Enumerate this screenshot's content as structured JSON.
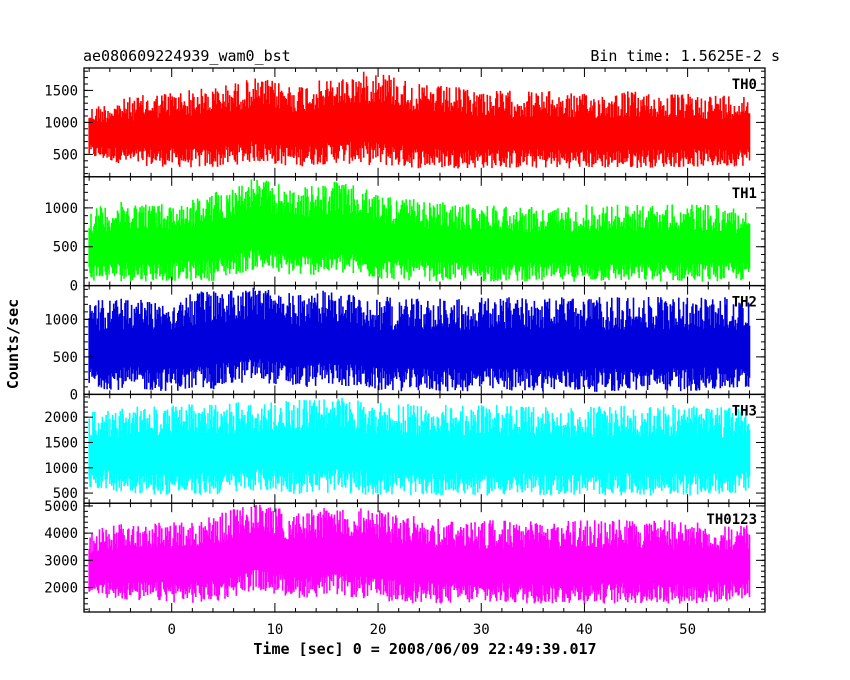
{
  "header": {
    "title": "ae080609224939_wam0_bst",
    "bin_time": "Bin time: 1.5625E-2 s"
  },
  "chart_data": {
    "type": "line",
    "x_label": "Time [sec] 0 = 2008/06/09 22:49:39.017",
    "y_label": "Counts/sec",
    "x_range": [
      -8.5,
      57.5
    ],
    "x_ticks": [
      0,
      10,
      20,
      30,
      40,
      50
    ],
    "x_tick_labels": [
      "0",
      "10",
      "20",
      "30",
      "40",
      "50"
    ],
    "data_x_range": [
      -8.0,
      56.0
    ],
    "panels": [
      {
        "name": "TH0",
        "color": "#ff0000",
        "y_range": [
          150,
          1850
        ],
        "y_ticks": [
          500,
          1000,
          1500
        ],
        "y_tick_labels": [
          "500",
          "1000",
          "1500"
        ],
        "upper_envelope": [
          [
            -8,
            1250
          ],
          [
            -4,
            1400
          ],
          [
            0,
            1500
          ],
          [
            4,
            1550
          ],
          [
            8,
            1700
          ],
          [
            12,
            1600
          ],
          [
            16,
            1700
          ],
          [
            20,
            1850
          ],
          [
            24,
            1600
          ],
          [
            28,
            1550
          ],
          [
            32,
            1500
          ],
          [
            36,
            1500
          ],
          [
            40,
            1450
          ],
          [
            44,
            1500
          ],
          [
            48,
            1450
          ],
          [
            52,
            1450
          ],
          [
            56,
            1450
          ]
        ],
        "lower_envelope": [
          [
            -8,
            450
          ],
          [
            -4,
            330
          ],
          [
            0,
            300
          ],
          [
            4,
            280
          ],
          [
            8,
            380
          ],
          [
            12,
            300
          ],
          [
            16,
            360
          ],
          [
            20,
            320
          ],
          [
            24,
            280
          ],
          [
            28,
            280
          ],
          [
            32,
            280
          ],
          [
            36,
            280
          ],
          [
            40,
            280
          ],
          [
            44,
            280
          ],
          [
            48,
            300
          ],
          [
            52,
            300
          ],
          [
            56,
            320
          ]
        ]
      },
      {
        "name": "TH1",
        "color": "#00ff00",
        "y_range": [
          0,
          1400
        ],
        "y_ticks": [
          0,
          500,
          1000
        ],
        "y_tick_labels": [
          "0",
          "500",
          "1000"
        ],
        "upper_envelope": [
          [
            -8,
            1000
          ],
          [
            -4,
            1100
          ],
          [
            0,
            1050
          ],
          [
            4,
            1200
          ],
          [
            8,
            1400
          ],
          [
            12,
            1250
          ],
          [
            16,
            1350
          ],
          [
            20,
            1200
          ],
          [
            24,
            1100
          ],
          [
            28,
            1050
          ],
          [
            32,
            1050
          ],
          [
            36,
            1000
          ],
          [
            40,
            1050
          ],
          [
            44,
            1050
          ],
          [
            48,
            1050
          ],
          [
            52,
            1050
          ],
          [
            56,
            1000
          ]
        ],
        "lower_envelope": [
          [
            -8,
            60
          ],
          [
            -4,
            50
          ],
          [
            0,
            60
          ],
          [
            4,
            60
          ],
          [
            8,
            200
          ],
          [
            12,
            120
          ],
          [
            16,
            150
          ],
          [
            20,
            80
          ],
          [
            24,
            60
          ],
          [
            28,
            50
          ],
          [
            32,
            50
          ],
          [
            36,
            50
          ],
          [
            40,
            50
          ],
          [
            44,
            50
          ],
          [
            48,
            50
          ],
          [
            52,
            50
          ],
          [
            56,
            60
          ]
        ]
      },
      {
        "name": "TH2",
        "color": "#0000dd",
        "y_range": [
          0,
          1450
        ],
        "y_ticks": [
          0,
          500,
          1000
        ],
        "y_tick_labels": [
          "0",
          "500",
          "1000"
        ],
        "upper_envelope": [
          [
            -8,
            1250
          ],
          [
            -4,
            1300
          ],
          [
            0,
            1300
          ],
          [
            4,
            1400
          ],
          [
            8,
            1450
          ],
          [
            12,
            1350
          ],
          [
            16,
            1400
          ],
          [
            20,
            1300
          ],
          [
            24,
            1300
          ],
          [
            28,
            1300
          ],
          [
            32,
            1300
          ],
          [
            36,
            1300
          ],
          [
            40,
            1300
          ],
          [
            44,
            1300
          ],
          [
            48,
            1300
          ],
          [
            52,
            1300
          ],
          [
            56,
            1300
          ]
        ],
        "lower_envelope": [
          [
            -8,
            80
          ],
          [
            -4,
            50
          ],
          [
            0,
            40
          ],
          [
            4,
            60
          ],
          [
            8,
            180
          ],
          [
            12,
            80
          ],
          [
            16,
            120
          ],
          [
            20,
            40
          ],
          [
            24,
            40
          ],
          [
            28,
            30
          ],
          [
            32,
            40
          ],
          [
            36,
            40
          ],
          [
            40,
            30
          ],
          [
            44,
            40
          ],
          [
            48,
            40
          ],
          [
            52,
            40
          ],
          [
            56,
            60
          ]
        ]
      },
      {
        "name": "TH3",
        "color": "#00ffff",
        "y_range": [
          300,
          2450
        ],
        "y_ticks": [
          500,
          1000,
          1500,
          2000
        ],
        "y_tick_labels": [
          "500",
          "1000",
          "1500",
          "2000"
        ],
        "upper_envelope": [
          [
            -8,
            2100
          ],
          [
            -4,
            2200
          ],
          [
            0,
            2250
          ],
          [
            4,
            2300
          ],
          [
            8,
            2300
          ],
          [
            12,
            2350
          ],
          [
            16,
            2400
          ],
          [
            20,
            2300
          ],
          [
            24,
            2250
          ],
          [
            28,
            2250
          ],
          [
            32,
            2250
          ],
          [
            36,
            2200
          ],
          [
            40,
            2200
          ],
          [
            44,
            2250
          ],
          [
            48,
            2250
          ],
          [
            52,
            2200
          ],
          [
            56,
            2200
          ]
        ],
        "lower_envelope": [
          [
            -8,
            600
          ],
          [
            -4,
            500
          ],
          [
            0,
            450
          ],
          [
            4,
            450
          ],
          [
            8,
            550
          ],
          [
            12,
            480
          ],
          [
            16,
            500
          ],
          [
            20,
            450
          ],
          [
            24,
            450
          ],
          [
            28,
            450
          ],
          [
            32,
            450
          ],
          [
            36,
            450
          ],
          [
            40,
            450
          ],
          [
            44,
            450
          ],
          [
            48,
            450
          ],
          [
            52,
            450
          ],
          [
            56,
            500
          ]
        ]
      },
      {
        "name": "TH0123",
        "color": "#ff00ff",
        "y_range": [
          1100,
          5100
        ],
        "y_ticks": [
          2000,
          3000,
          4000,
          5000
        ],
        "y_tick_labels": [
          "2000",
          "3000",
          "4000",
          "5000"
        ],
        "upper_envelope": [
          [
            -8,
            4100
          ],
          [
            -4,
            4400
          ],
          [
            0,
            4500
          ],
          [
            4,
            4700
          ],
          [
            8,
            5100
          ],
          [
            12,
            4800
          ],
          [
            16,
            5000
          ],
          [
            20,
            4900
          ],
          [
            24,
            4600
          ],
          [
            28,
            4500
          ],
          [
            32,
            4500
          ],
          [
            36,
            4400
          ],
          [
            40,
            4500
          ],
          [
            44,
            4500
          ],
          [
            48,
            4500
          ],
          [
            52,
            4400
          ],
          [
            56,
            4300
          ]
        ],
        "lower_envelope": [
          [
            -8,
            1700
          ],
          [
            -4,
            1500
          ],
          [
            0,
            1450
          ],
          [
            4,
            1400
          ],
          [
            8,
            1900
          ],
          [
            12,
            1600
          ],
          [
            16,
            1700
          ],
          [
            20,
            1500
          ],
          [
            24,
            1400
          ],
          [
            28,
            1400
          ],
          [
            32,
            1400
          ],
          [
            36,
            1400
          ],
          [
            40,
            1400
          ],
          [
            44,
            1400
          ],
          [
            48,
            1400
          ],
          [
            52,
            1400
          ],
          [
            56,
            1600
          ]
        ]
      }
    ]
  }
}
